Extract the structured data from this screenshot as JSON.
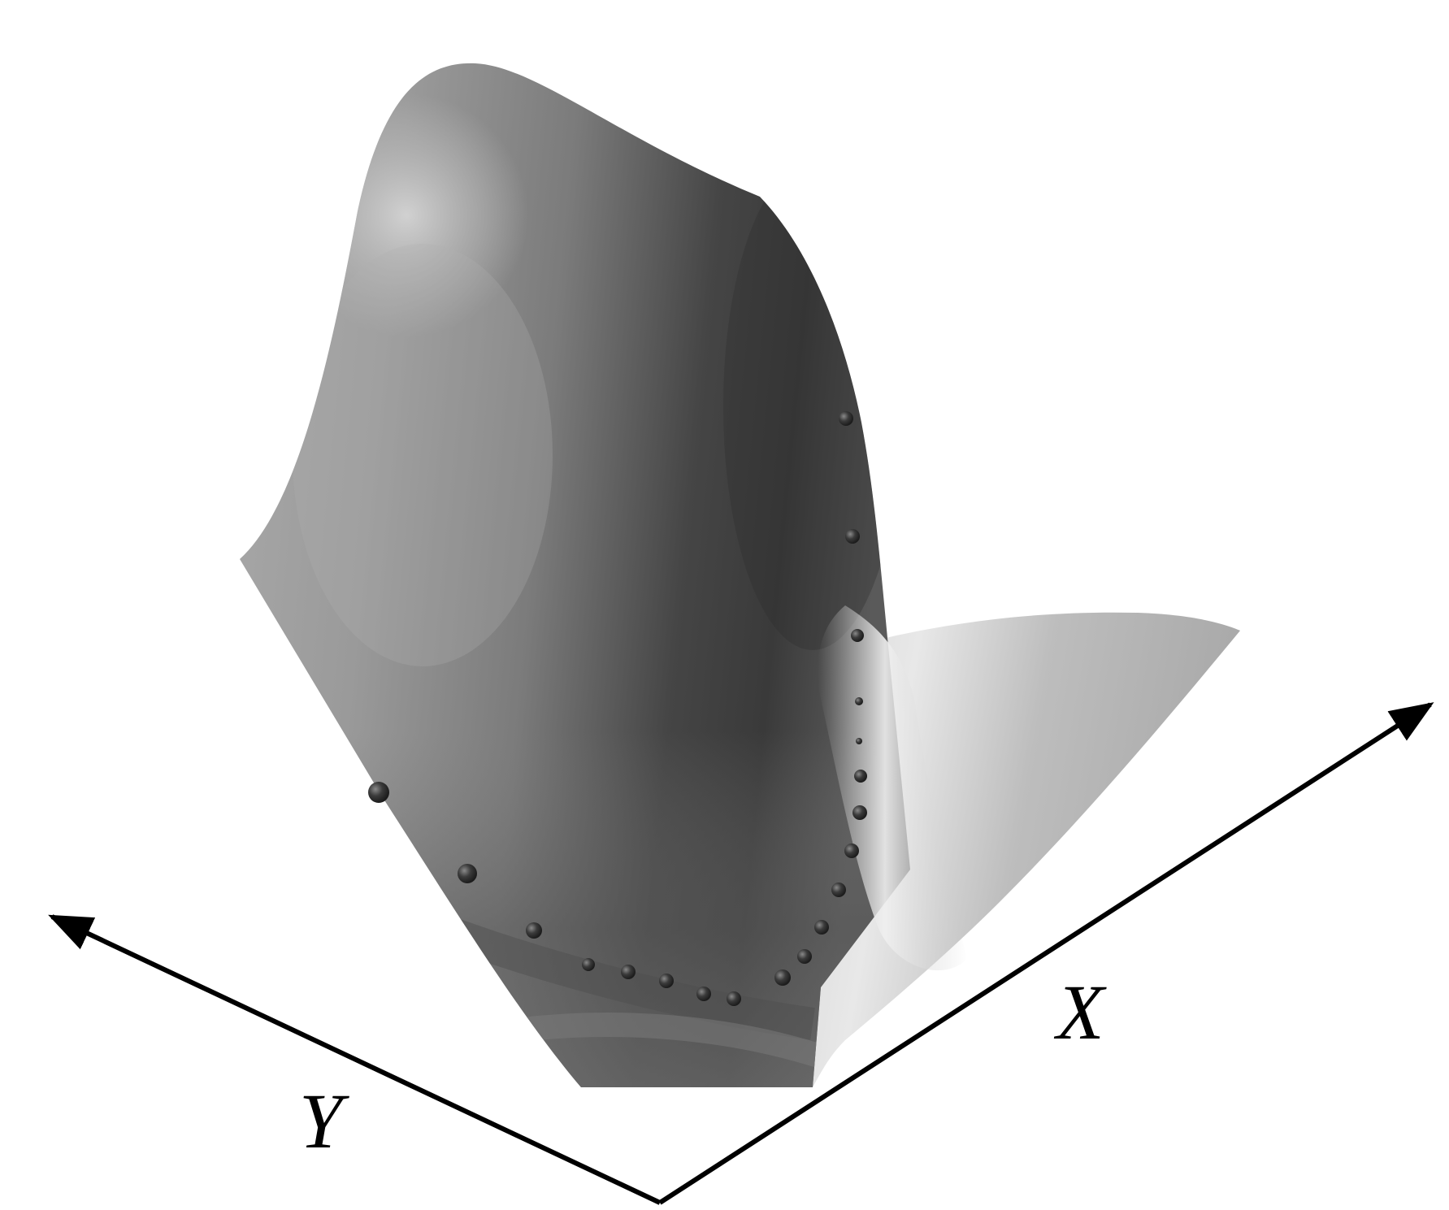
{
  "axes": {
    "x_label": "X",
    "y_label": "Y"
  },
  "colors": {
    "background": "#ffffff",
    "axis": "#000000",
    "surface_dark": "#3a3a3a",
    "surface_mid": "#8a8a8a",
    "surface_light": "#e6e6e6",
    "marker": "#3b3b3b"
  }
}
